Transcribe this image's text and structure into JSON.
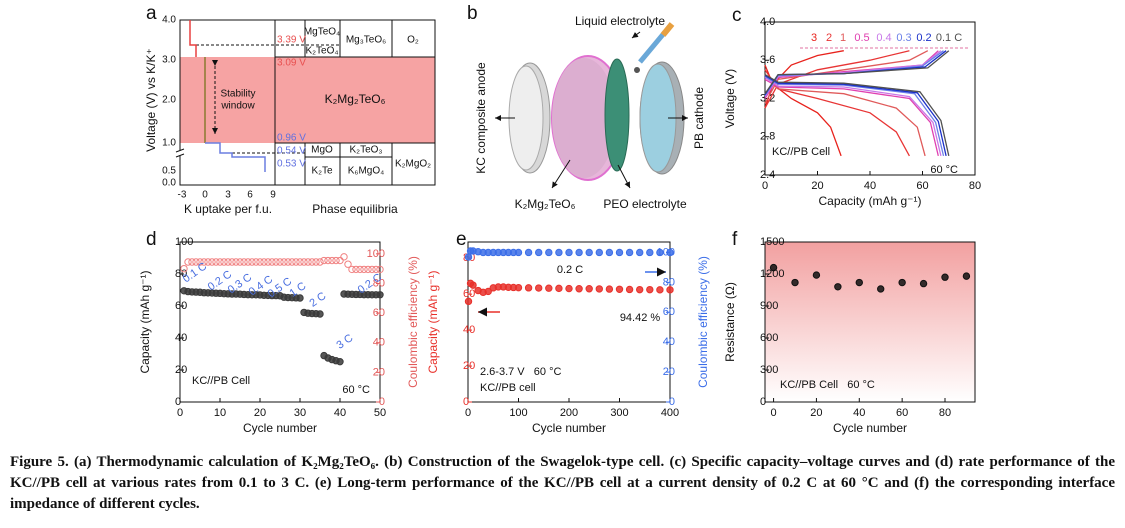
{
  "panel_a": {
    "label": "a",
    "y_label": "Voltage (V) vs K/K⁺",
    "x_label": "K uptake per f.u.",
    "phase_title": "Phase equilibria",
    "x_ticks": [
      "-3",
      "0",
      "3",
      "6",
      "9"
    ],
    "y_ticks": [
      "0.0",
      "0.5",
      "1.0",
      "2.0",
      "3.0",
      "4.0"
    ],
    "voltages": [
      "3.39 V",
      "3.09 V",
      "0.96 V",
      "0.54 V",
      "0.53 V"
    ],
    "stability_window": [
      "Stability",
      "window"
    ],
    "phases": [
      "MgTeO₄",
      "K₂TeO₄",
      "Mg₃TeO₆",
      "O₂",
      "K₂Mg₂TeO₆",
      "MgO",
      "K₂TeO₃",
      "K₂Te",
      "K₆MgO₄",
      "K₂MgO₂"
    ]
  },
  "panel_b": {
    "label": "b",
    "labels": [
      "Liquid electrolyte",
      "KC composite anode",
      "K₂Mg₂TeO₆",
      "PEO electrolyte",
      "PB cathode"
    ]
  },
  "chart_data": [
    {
      "type": "line",
      "panel": "c",
      "xlabel": "Capacity (mAh g⁻¹)",
      "ylabel": "Voltage (V)",
      "xlim": [
        0,
        80
      ],
      "ylim": [
        2.4,
        4.0
      ],
      "xticks": [
        0,
        20,
        40,
        60,
        80
      ],
      "yticks": [
        2.4,
        2.8,
        3.2,
        3.6,
        {
          "value": 4,
          "label": "4.0"
        }
      ],
      "annotations": [
        "KC//PB Cell",
        "60 °C"
      ],
      "series": [
        {
          "name": "3",
          "color": "#e8221c",
          "x": [
            0,
            3,
            10,
            20,
            25,
            29,
            null,
            0,
            3,
            10,
            20,
            30
          ],
          "values": [
            3.55,
            3.35,
            3.2,
            3.05,
            2.9,
            2.6,
            null,
            3.1,
            3.35,
            3.55,
            3.65,
            3.7
          ]
        },
        {
          "name": "2",
          "color": "#e83535",
          "x": [
            0,
            5,
            20,
            40,
            50,
            55,
            null,
            0,
            5,
            20,
            40,
            55
          ],
          "values": [
            3.5,
            3.3,
            3.2,
            3.05,
            2.85,
            2.6,
            null,
            3.1,
            3.35,
            3.5,
            3.6,
            3.7
          ]
        },
        {
          "name": "1",
          "color": "#e05a5a",
          "x": [
            0,
            5,
            30,
            50,
            58,
            61,
            null,
            0,
            5,
            30,
            55,
            62
          ],
          "values": [
            3.45,
            3.3,
            3.25,
            3.1,
            2.9,
            2.6,
            null,
            3.15,
            3.4,
            3.5,
            3.6,
            3.7
          ]
        },
        {
          "name": "0.5",
          "color": "#e040b0",
          "x": [
            0,
            5,
            30,
            55,
            63,
            66,
            null,
            0,
            5,
            30,
            60,
            66
          ],
          "values": [
            3.4,
            3.32,
            3.3,
            3.2,
            2.95,
            2.6,
            null,
            3.2,
            3.42,
            3.48,
            3.55,
            3.7
          ]
        },
        {
          "name": "0.4",
          "color": "#c878e8",
          "x": [
            0,
            5,
            30,
            55,
            64,
            67,
            null,
            0,
            5,
            30,
            60,
            67
          ],
          "values": [
            3.42,
            3.33,
            3.32,
            3.22,
            2.95,
            2.6,
            null,
            3.22,
            3.43,
            3.47,
            3.55,
            3.7
          ]
        },
        {
          "name": "0.3",
          "color": "#6a7fe8",
          "x": [
            0,
            5,
            30,
            57,
            65,
            68,
            null,
            0,
            5,
            30,
            60,
            68
          ],
          "values": [
            3.43,
            3.35,
            3.34,
            3.25,
            2.95,
            2.6,
            null,
            3.23,
            3.44,
            3.46,
            3.54,
            3.7
          ]
        },
        {
          "name": "0.2",
          "color": "#1a2fc8",
          "x": [
            0,
            5,
            30,
            58,
            66,
            69,
            null,
            0,
            5,
            30,
            61,
            69
          ],
          "values": [
            3.44,
            3.36,
            3.35,
            3.26,
            2.96,
            2.6,
            null,
            3.24,
            3.45,
            3.46,
            3.53,
            3.7
          ]
        },
        {
          "name": "0.1 C",
          "color": "#505050",
          "x": [
            0,
            5,
            30,
            59,
            67,
            70,
            null,
            0,
            5,
            30,
            62,
            70
          ],
          "values": [
            3.45,
            3.37,
            3.36,
            3.27,
            2.97,
            2.6,
            null,
            3.25,
            3.45,
            3.46,
            3.52,
            3.7
          ]
        }
      ]
    },
    {
      "type": "scatter",
      "panel": "d",
      "xlabel": "Cycle number",
      "ylabel": "Capacity (mAh g⁻¹)",
      "y2label": "Coulombic efficiency (%)",
      "y2_color": "#e25a5a",
      "xlim": [
        0,
        50
      ],
      "ylim": [
        0,
        100
      ],
      "y2lim": [
        0,
        108
      ],
      "xticks": [
        0,
        10,
        20,
        30,
        40,
        50
      ],
      "yticks": [
        0,
        20,
        40,
        60,
        80,
        100
      ],
      "y2ticks": [
        0,
        20,
        40,
        60,
        80,
        100
      ],
      "annotations": [
        "0.1 C",
        "0.2 C",
        "0.3 C",
        "0.4 C",
        "0.5 C",
        "1 C",
        "2 C",
        "3 C",
        "0.2 C",
        "KC//PB Cell",
        "60 °C"
      ],
      "x": [
        1,
        2,
        3,
        4,
        5,
        6,
        7,
        8,
        9,
        10,
        11,
        12,
        13,
        14,
        15,
        16,
        17,
        18,
        19,
        20,
        21,
        22,
        23,
        24,
        25,
        26,
        27,
        28,
        29,
        30,
        31,
        32,
        33,
        34,
        35,
        36,
        37,
        38,
        39,
        40,
        41,
        42,
        43,
        44,
        45,
        46,
        47,
        48,
        49,
        50
      ],
      "series": [
        {
          "color": "#3a3a3a",
          "marker": "filled",
          "values": [
            69.5,
            69,
            68.8,
            68.7,
            68.6,
            68.3,
            68.2,
            68.1,
            68,
            67.9,
            67.7,
            67.6,
            67.5,
            67.5,
            67.4,
            67.2,
            67.1,
            67,
            67,
            66.9,
            66.7,
            66.6,
            66.5,
            66.5,
            66.4,
            65.5,
            65.3,
            65.2,
            65.1,
            65,
            56,
            55.5,
            55.3,
            55.2,
            55,
            29,
            27.5,
            26.5,
            25.8,
            25.2,
            67.5,
            67.4,
            67.3,
            67.2,
            67.2,
            67.1,
            67.1,
            67,
            67,
            67
          ]
        },
        {
          "color": "#f08080",
          "marker": "open",
          "axis": "y2",
          "values": [
            90,
            94.5,
            94.5,
            94.5,
            94.5,
            94.5,
            94.5,
            94.5,
            94.5,
            94.5,
            94.5,
            94.5,
            94.5,
            94.5,
            94.5,
            94.5,
            94.5,
            94.5,
            94.5,
            94.5,
            94.5,
            94.5,
            94.5,
            94.5,
            94.5,
            94.5,
            94.5,
            94.5,
            94.5,
            94.5,
            94.5,
            94.5,
            94.5,
            94.5,
            94.5,
            95.5,
            95.5,
            95.5,
            95.5,
            95.5,
            98,
            93,
            89.5,
            89.5,
            89.5,
            89.5,
            89.5,
            89.5,
            89.5,
            89.5
          ]
        }
      ]
    },
    {
      "type": "scatter",
      "panel": "e",
      "xlabel": "Cycle number",
      "ylabel": "Capacity (mAh g⁻¹)",
      "y2label": "Coulombic efficiency (%)",
      "y_color": "#e8302a",
      "y2_color": "#3c6ee8",
      "xlim": [
        0,
        400
      ],
      "ylim": [
        0,
        89
      ],
      "y2lim": [
        0,
        107
      ],
      "xticks": [
        0,
        100,
        200,
        300,
        400
      ],
      "yticks": [
        0,
        20,
        40,
        60,
        80
      ],
      "y2ticks": [
        0,
        20,
        40,
        60,
        80,
        100
      ],
      "annotations": [
        "0.2 C",
        "94.42 %",
        "2.6-3.7 V   60 °C",
        "KC//PB cell"
      ],
      "x": [
        1,
        5,
        10,
        20,
        30,
        40,
        50,
        60,
        70,
        80,
        90,
        100,
        120,
        140,
        160,
        180,
        200,
        220,
        240,
        260,
        280,
        300,
        320,
        340,
        360,
        380,
        400
      ],
      "series": [
        {
          "color": "#e8302a",
          "marker": "filled",
          "values": [
            56,
            66,
            65,
            62,
            61,
            61.5,
            63.5,
            64,
            64,
            63.8,
            63.7,
            63.6,
            63.5,
            63.4,
            63.3,
            63.2,
            63.1,
            63,
            63,
            62.9,
            62.8,
            62.7,
            62.6,
            62.5,
            62.5,
            62.4,
            62.4
          ]
        },
        {
          "color": "#3c6ee8",
          "marker": "filled",
          "axis": "y2",
          "values": [
            97,
            101,
            101,
            100.5,
            100,
            100,
            100,
            100,
            100,
            100,
            100,
            100,
            100,
            100,
            100,
            100,
            100,
            100,
            100,
            100,
            100,
            100,
            100,
            100,
            100,
            100,
            100
          ]
        }
      ]
    },
    {
      "type": "scatter",
      "panel": "f",
      "xlabel": "Cycle number",
      "ylabel": "Resistance (Ω)",
      "xlim": [
        -4,
        94
      ],
      "ylim": [
        0,
        1500
      ],
      "xticks": [
        0,
        20,
        40,
        60,
        80
      ],
      "yticks": [
        0,
        300,
        600,
        900,
        1200,
        1500
      ],
      "annotations": [
        "KC//PB Cell   60 °C"
      ],
      "x": [
        0,
        10,
        20,
        30,
        40,
        50,
        60,
        70,
        80,
        90
      ],
      "series": [
        {
          "color": "#111111",
          "marker": "filled",
          "values": [
            1260,
            1120,
            1190,
            1080,
            1120,
            1060,
            1120,
            1110,
            1170,
            1180
          ]
        }
      ]
    }
  ],
  "caption": "Figure 5. (a) Thermodynamic calculation of K₂Mg₂TeO₆. (b) Construction of the Swagelok-type cell. (c) Specific capacity–voltage curves and (d) rate performance of the KC//PB cell at various rates from 0.1 to 3 C. (e) Long-term performance of the KC//PB cell at a current density of 0.2 C at 60 °C and (f) the corresponding interface impedance of different cycles."
}
